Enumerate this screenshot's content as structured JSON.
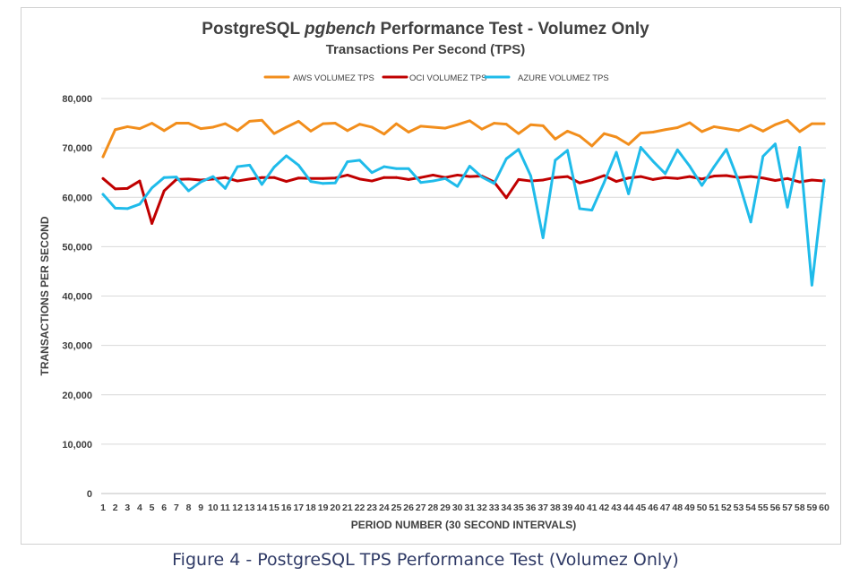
{
  "chart_data": {
    "type": "line",
    "title_prefix": "PostgreSQL ",
    "title_italic": "pgbench",
    "title_suffix": " Performance Test - Volumez Only",
    "subtitle": "Transactions Per Second (TPS)",
    "xlabel": "PERIOD NUMBER (30 SECOND INTERVALS)",
    "ylabel": "TRANSACTIONS PER SECOND",
    "ylim": [
      0,
      80000
    ],
    "yticks": [
      "0",
      "10,000",
      "20,000",
      "30,000",
      "40,000",
      "50,000",
      "60,000",
      "70,000",
      "80,000"
    ],
    "ytick_values": [
      0,
      10000,
      20000,
      30000,
      40000,
      50000,
      60000,
      70000,
      80000
    ],
    "grid": true,
    "legend_position": "top-center",
    "x": [
      1,
      2,
      3,
      4,
      5,
      6,
      7,
      8,
      9,
      10,
      11,
      12,
      13,
      14,
      15,
      16,
      17,
      18,
      19,
      20,
      21,
      22,
      23,
      24,
      25,
      26,
      27,
      28,
      29,
      30,
      31,
      32,
      33,
      34,
      35,
      36,
      37,
      38,
      39,
      40,
      41,
      42,
      43,
      44,
      45,
      46,
      47,
      48,
      49,
      50,
      51,
      52,
      53,
      54,
      55,
      56,
      57,
      58,
      59,
      60
    ],
    "series": [
      {
        "name": "AWS VOLUMEZ TPS",
        "color": "#f28e1c",
        "values": [
          68200,
          73700,
          74300,
          73900,
          75000,
          73500,
          75000,
          75000,
          73900,
          74200,
          74900,
          73500,
          75400,
          75600,
          72900,
          74200,
          75400,
          73400,
          74900,
          75000,
          73500,
          74800,
          74200,
          72800,
          74900,
          73200,
          74400,
          74200,
          74000,
          74700,
          75500,
          73800,
          75000,
          74800,
          72900,
          74700,
          74500,
          71800,
          73400,
          72400,
          70400,
          72900,
          72200,
          70700,
          73000,
          73200,
          73700,
          74100,
          75100,
          73300,
          74300,
          73900,
          73500,
          74600,
          73400,
          74700,
          75600,
          73300,
          74900,
          74900
        ]
      },
      {
        "name": "OCI VOLUMEZ TPS",
        "color": "#c00000",
        "values": [
          63800,
          61700,
          61800,
          63300,
          54700,
          61300,
          63600,
          63700,
          63500,
          63700,
          64000,
          63300,
          63700,
          64000,
          64000,
          63200,
          63900,
          63800,
          63800,
          63900,
          64500,
          63700,
          63300,
          64000,
          64000,
          63600,
          64000,
          64500,
          64000,
          64500,
          64200,
          64300,
          63100,
          59900,
          63600,
          63300,
          63500,
          64000,
          64200,
          62900,
          63500,
          64400,
          63200,
          63900,
          64200,
          63600,
          64000,
          63800,
          64200,
          63700,
          64300,
          64400,
          64000,
          64200,
          63900,
          63400,
          63800,
          63100,
          63500,
          63300
        ]
      },
      {
        "name": "AZURE VOLUMEZ TPS",
        "color": "#1fbbea",
        "values": [
          60600,
          57800,
          57700,
          58600,
          61900,
          64000,
          64100,
          61300,
          63100,
          64200,
          61800,
          66200,
          66500,
          62600,
          66100,
          68400,
          66500,
          63200,
          62800,
          62900,
          67200,
          67500,
          65000,
          66200,
          65800,
          65800,
          63000,
          63300,
          63800,
          62200,
          66300,
          64100,
          62800,
          67800,
          69700,
          64300,
          51800,
          67500,
          69500,
          57700,
          57400,
          63000,
          69100,
          60700,
          70100,
          67300,
          64800,
          69600,
          66300,
          62400,
          66200,
          69700,
          63300,
          55000,
          68300,
          70800,
          58000,
          70100,
          42200,
          63500
        ]
      }
    ]
  },
  "caption": "Figure 4 - PostgreSQL TPS Performance Test (Volumez Only)"
}
